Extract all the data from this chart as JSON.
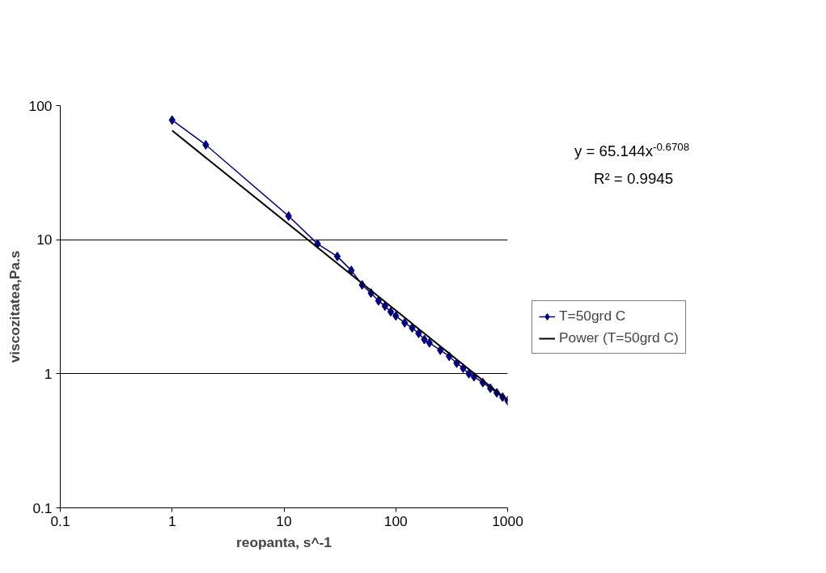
{
  "chart_data": {
    "type": "line",
    "xlabel": "reopanta, s^-1",
    "ylabel": "viscozitatea,Pa.s",
    "log": "xy",
    "xlim": [
      0.1,
      1000
    ],
    "ylim": [
      0.1,
      100
    ],
    "xticks": [
      0.1,
      1,
      10,
      100,
      1000
    ],
    "yticks": [
      0.1,
      1,
      10,
      100
    ],
    "grid": "y",
    "legend": "right",
    "marker": "diamond",
    "line_style": "solid",
    "annotations": [
      "y = 65.144x$^{-0.6708}$",
      "R² = 0.9945"
    ],
    "series": [
      {
        "name": "T=50grd C",
        "color": "#000080",
        "x": [
          1,
          2,
          11,
          20,
          30,
          40,
          50,
          60,
          70,
          80,
          90,
          100,
          120,
          140,
          160,
          180,
          200,
          250,
          300,
          350,
          400,
          450,
          500,
          600,
          700,
          800,
          900,
          1000
        ],
        "values": [
          78,
          51,
          15,
          9.3,
          7.5,
          5.9,
          4.6,
          4.0,
          3.5,
          3.2,
          2.9,
          2.7,
          2.4,
          2.2,
          2.0,
          1.8,
          1.7,
          1.5,
          1.35,
          1.2,
          1.1,
          1.0,
          0.95,
          0.86,
          0.78,
          0.72,
          0.67,
          0.63
        ]
      },
      {
        "name": "Power (T=50grd C)",
        "type": "line",
        "marker": "none",
        "color": "#000000",
        "x": [
          1,
          1000
        ],
        "values": [
          65.144,
          0.633
        ]
      }
    ]
  }
}
